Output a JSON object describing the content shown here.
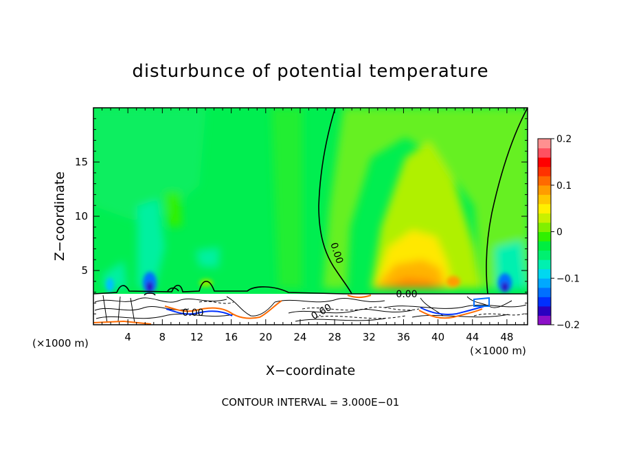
{
  "chart_data": {
    "type": "heatmap",
    "title": "disturbunce of potential temperature",
    "xlabel": "X−coordinate",
    "ylabel": "Z−coordinate",
    "x_unit_left": "(×1000 m)",
    "x_unit_right": "(×1000 m)",
    "footer": "CONTOUR INTERVAL = 3.000E−01",
    "xlim": [
      0,
      50.4
    ],
    "ylim": [
      0,
      20
    ],
    "xticks": [
      4,
      8,
      12,
      16,
      20,
      24,
      28,
      32,
      36,
      40,
      44,
      48
    ],
    "xtick_labels": [
      "4",
      "8",
      "12",
      "16",
      "20",
      "24",
      "28",
      "32",
      "36",
      "40",
      "44",
      "48"
    ],
    "yticks": [
      5,
      10,
      15
    ],
    "ytick_labels": [
      "5",
      "10",
      "15"
    ],
    "colorbar": {
      "range": [
        -0.2,
        0.2
      ],
      "ticks": [
        0.2,
        0.1,
        0,
        -0.1,
        -0.2
      ],
      "tick_labels": [
        "0.2",
        "0.1",
        "0",
        "−0.1",
        "−0.2"
      ],
      "colors": [
        "#8c10c8",
        "#2a00c0",
        "#0030ff",
        "#0070ff",
        "#00a8ff",
        "#00d8f0",
        "#00f0b0",
        "#00f070",
        "#00ee40",
        "#30f000",
        "#80f000",
        "#c8f000",
        "#fff000",
        "#ffc800",
        "#ff9c00",
        "#ff6a00",
        "#ff3200",
        "#ff0000",
        "#ff5060",
        "#ff9090"
      ]
    },
    "contour_labels": [
      "0.00",
      "0.00",
      "0.00",
      "0.60"
    ],
    "grid": false,
    "legend": "colorbar-right"
  }
}
